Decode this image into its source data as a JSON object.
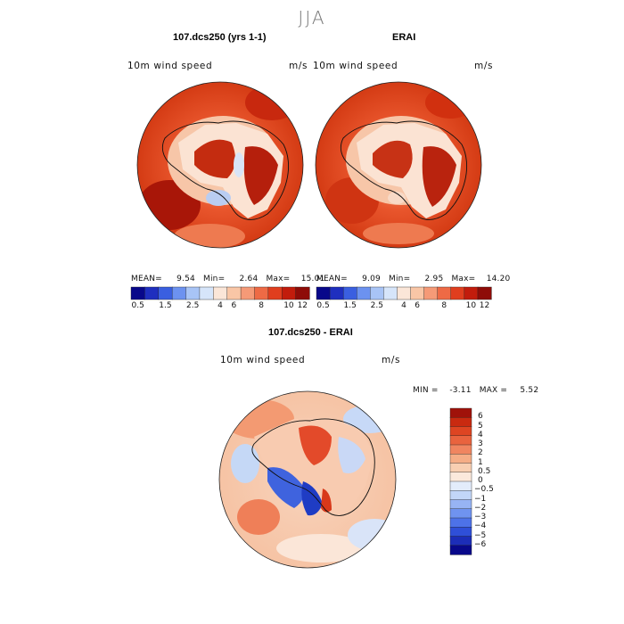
{
  "figure": {
    "season": "JJA",
    "panel1_title": "107.dcs250 (yrs 1-1)",
    "panel2_title": "ERAI",
    "panel3_title": "107.dcs250 - ERAI",
    "variable": "10m wind speed",
    "units": "m/s"
  },
  "panel1_stats": {
    "mean_label": "MEAN=",
    "mean": "9.54",
    "min_label": "Min=",
    "min": "2.64",
    "max_label": "Max=",
    "max": "15.01"
  },
  "panel2_stats": {
    "mean_label": "MEAN=",
    "mean": "9.09",
    "min_label": "Min=",
    "min": "2.95",
    "max_label": "Max=",
    "max": "14.20"
  },
  "panel3_stats": {
    "min_label": "MIN =",
    "min": "-3.11",
    "max_label": "MAX =",
    "max": "5.52"
  },
  "colorbar_abs": {
    "colors": [
      "#08088a",
      "#1f2fbf",
      "#3a5fe0",
      "#6c92f0",
      "#a8c4f6",
      "#d6e5fa",
      "#fbe6d8",
      "#f9c6a6",
      "#f59a77",
      "#ee6a45",
      "#e03e1e",
      "#c21c0c",
      "#8e0c08"
    ],
    "ticks": [
      "0.5",
      "1.5",
      "2.5",
      "4",
      "6",
      "8",
      "10",
      "12"
    ]
  },
  "colorbar_diff": {
    "colors": [
      "#08088a",
      "#1c2db8",
      "#2f4fd8",
      "#4d72e8",
      "#6f93f0",
      "#97b4f4",
      "#c2d6f8",
      "#e3ecfb",
      "#fbe9dc",
      "#f8cfb2",
      "#f5ad86",
      "#f08560",
      "#e9633e",
      "#de4522",
      "#c92a10",
      "#a0120a"
    ],
    "ticks": [
      "6",
      "5",
      "4",
      "3",
      "2",
      "1",
      "0.5",
      "0",
      "-0.5",
      "-1",
      "-2",
      "-3",
      "-4",
      "-5",
      "-6"
    ]
  }
}
